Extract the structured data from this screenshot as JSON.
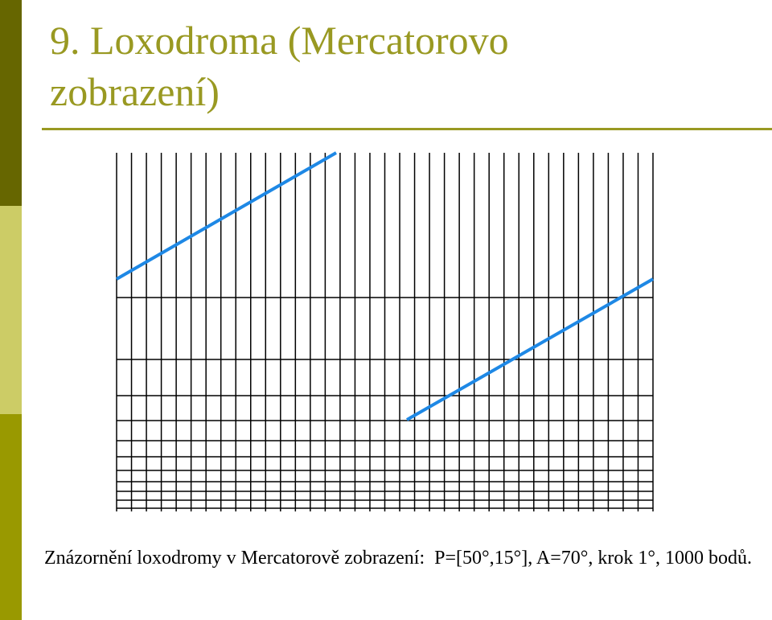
{
  "title": "9. Loxodroma (Mercatorovo zobrazení)",
  "caption": "Znázornění loxodromy v Mercatorově zobrazení:  P=[50°,15°], A=70°, krok 1°, 1000 bodů."
}
